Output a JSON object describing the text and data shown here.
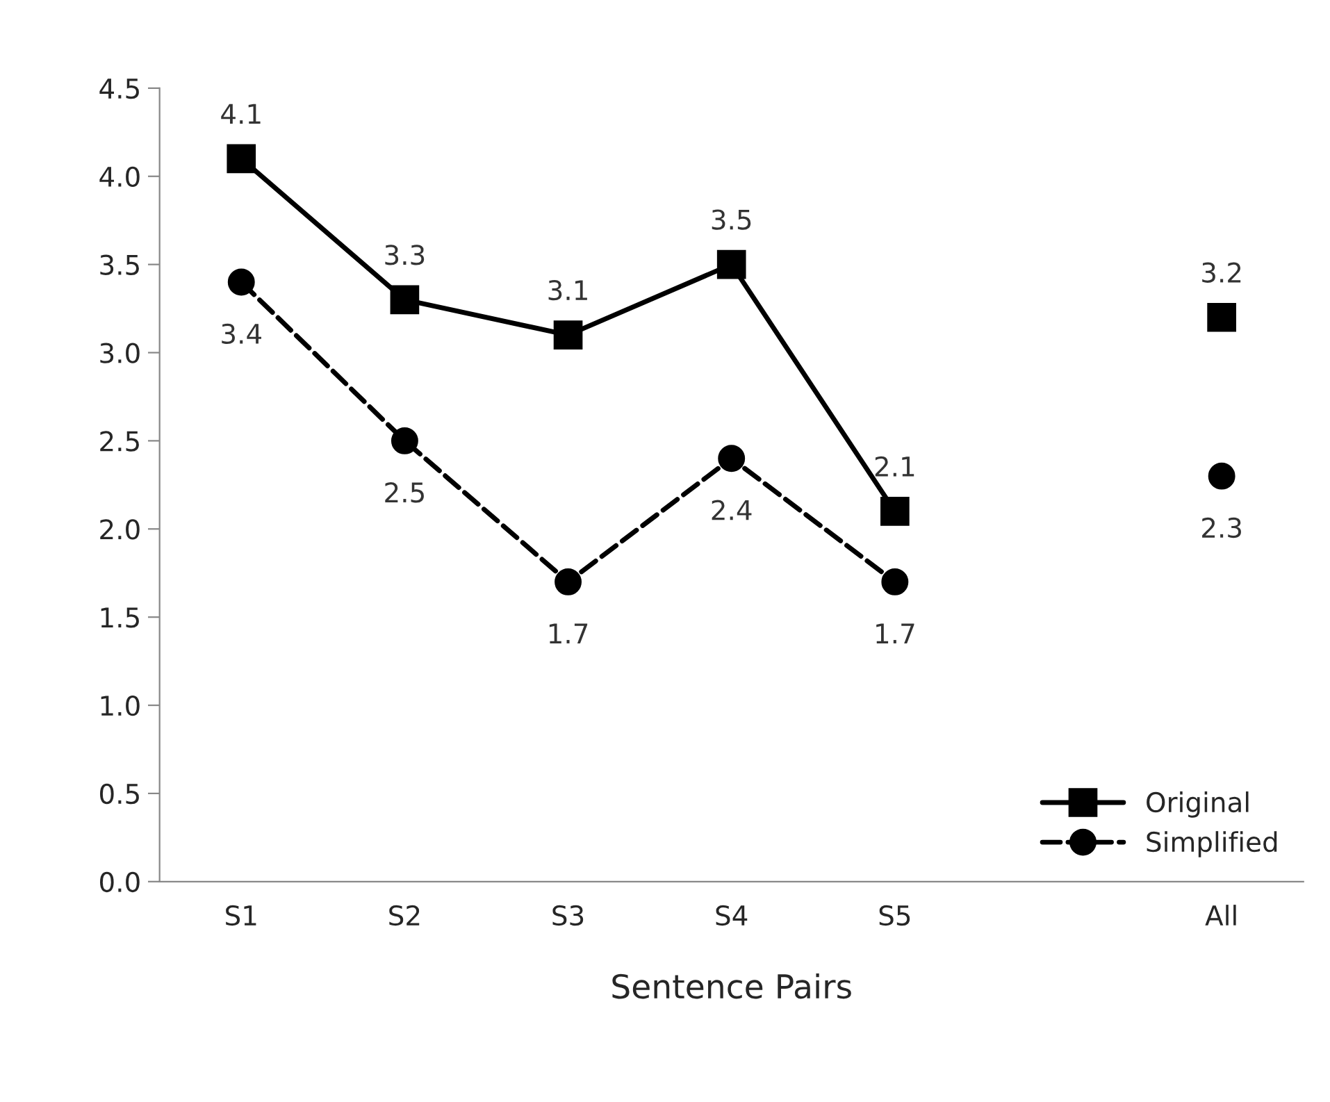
{
  "chart_data": {
    "type": "line",
    "xlabel": "Sentence Pairs",
    "categories": [
      "S1",
      "S2",
      "S3",
      "S4",
      "S5",
      null,
      "All"
    ],
    "series": [
      {
        "name": "Original",
        "color": "#000000",
        "marker": "square",
        "line_style": "solid",
        "values": [
          4.1,
          3.3,
          3.1,
          3.5,
          2.1,
          null,
          3.2
        ]
      },
      {
        "name": "Simplified",
        "color": "#000000",
        "marker": "circle",
        "line_style": "dashed",
        "values": [
          3.4,
          2.5,
          1.7,
          2.4,
          1.7,
          null,
          2.3
        ]
      }
    ],
    "ylim": [
      0,
      4.5
    ],
    "yticks": [
      {
        "value": 0,
        "label": "0.0"
      },
      {
        "value": 0.5,
        "label": "0.5"
      },
      {
        "value": 1,
        "label": "1.0"
      },
      {
        "value": 1.5,
        "label": "1.5"
      },
      {
        "value": 2,
        "label": "2.0"
      },
      {
        "value": 2.5,
        "label": "2.5"
      },
      {
        "value": 3,
        "label": "3.0"
      },
      {
        "value": 3.5,
        "label": "3.5"
      },
      {
        "value": 4,
        "label": "4.0"
      },
      {
        "value": 4.5,
        "label": "4.5"
      }
    ],
    "grid": false,
    "legend": "bottom right",
    "data_labels": true
  }
}
